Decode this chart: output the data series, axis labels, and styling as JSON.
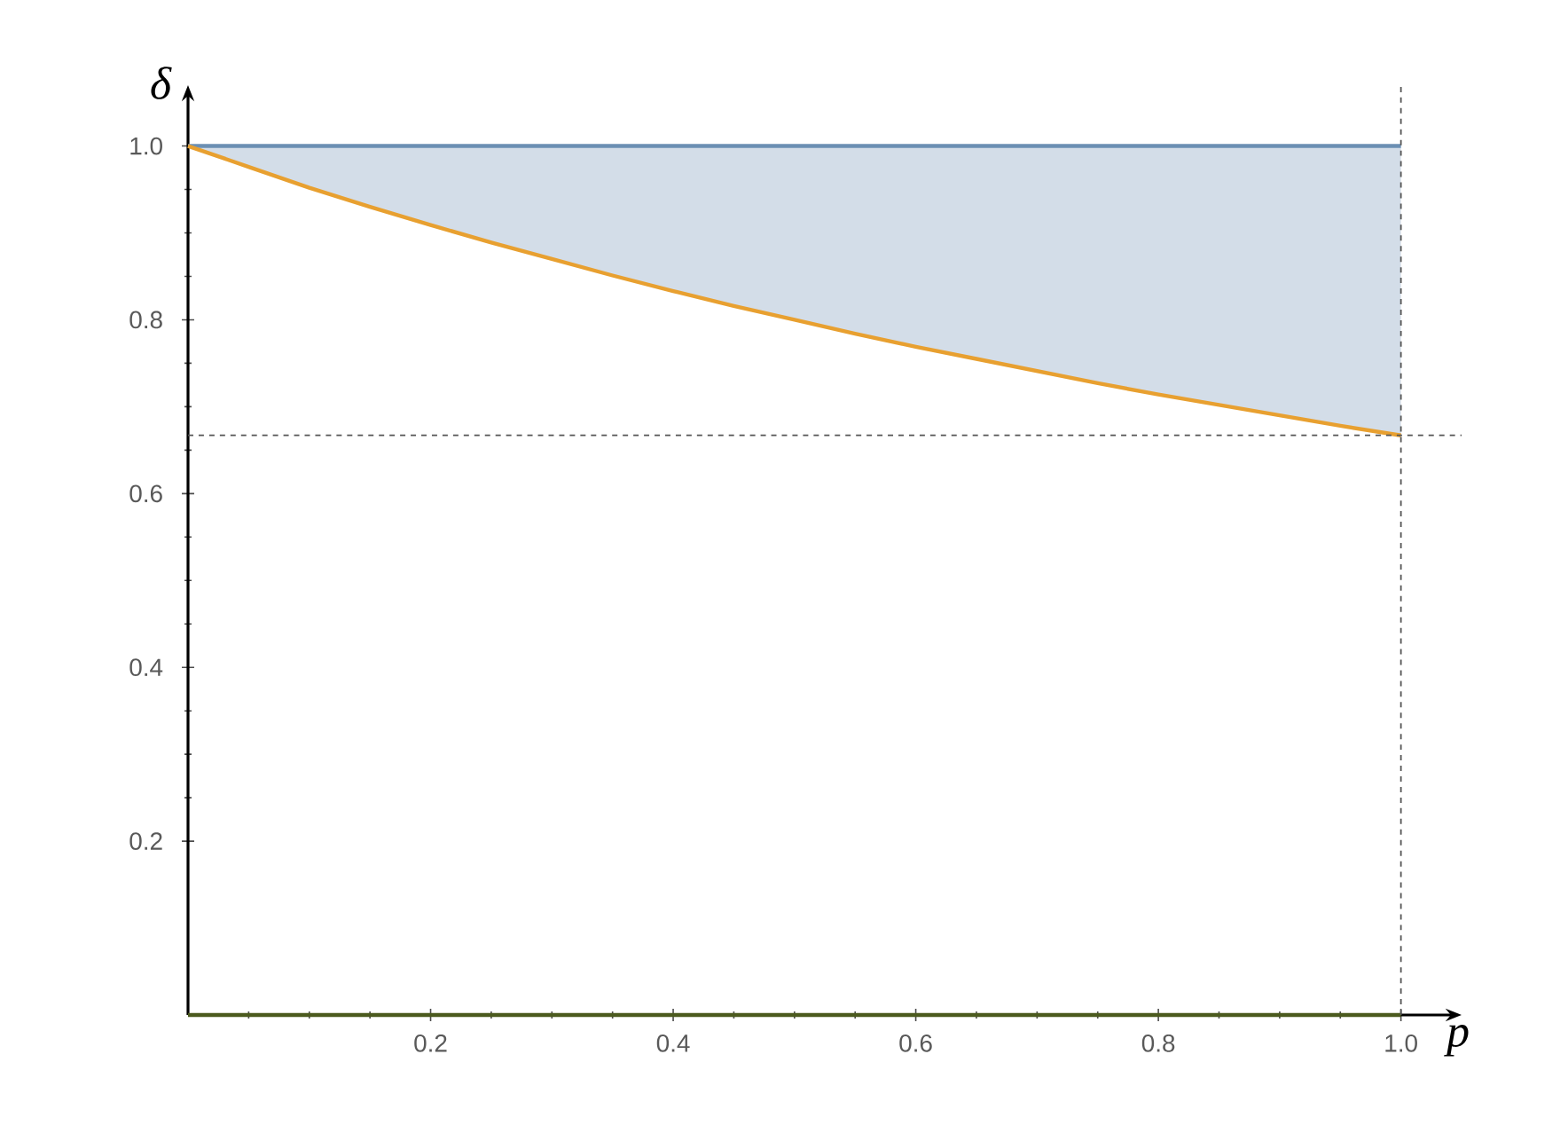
{
  "chart_data": {
    "type": "line",
    "xlabel": "p",
    "ylabel": "δ",
    "xlim": [
      0,
      1.05
    ],
    "ylim": [
      0,
      1.07
    ],
    "xticks": [
      {
        "value": 0,
        "label": null
      },
      0.2,
      0.4,
      0.6,
      0.8,
      {
        "value": 1,
        "label": "1.0"
      }
    ],
    "yticks": [
      0.2,
      0.4,
      0.6,
      0.8,
      {
        "value": 1,
        "label": "1.0"
      }
    ],
    "grid": false,
    "marker": "none",
    "line_style": "solid",
    "series": [
      {
        "color": "#6b8fb3",
        "x": [
          0,
          1
        ],
        "values": [
          1,
          1
        ]
      },
      {
        "color": "#e8a030",
        "x": [
          0,
          0.05,
          0.1,
          0.15,
          0.2,
          0.25,
          0.3,
          0.35,
          0.4,
          0.45,
          0.5,
          0.55,
          0.6,
          0.65,
          0.7,
          0.75,
          0.8,
          0.85,
          0.9,
          0.95,
          1.0
        ],
        "values": [
          1.0,
          0.976,
          0.952,
          0.93,
          0.909,
          0.889,
          0.87,
          0.851,
          0.833,
          0.816,
          0.8,
          0.784,
          0.769,
          0.755,
          0.741,
          0.727,
          0.714,
          0.702,
          0.69,
          0.678,
          0.667
        ]
      },
      {
        "color": "#4b5a1e",
        "x": [
          0,
          1
        ],
        "values": [
          0,
          0
        ]
      }
    ],
    "ref_lines": [
      {
        "axis": "y",
        "value": 0.667,
        "color": "#555555",
        "line_style": "dashed"
      },
      {
        "axis": "x",
        "value": 1,
        "color": "#555555",
        "line_style": "dashed"
      }
    ]
  }
}
